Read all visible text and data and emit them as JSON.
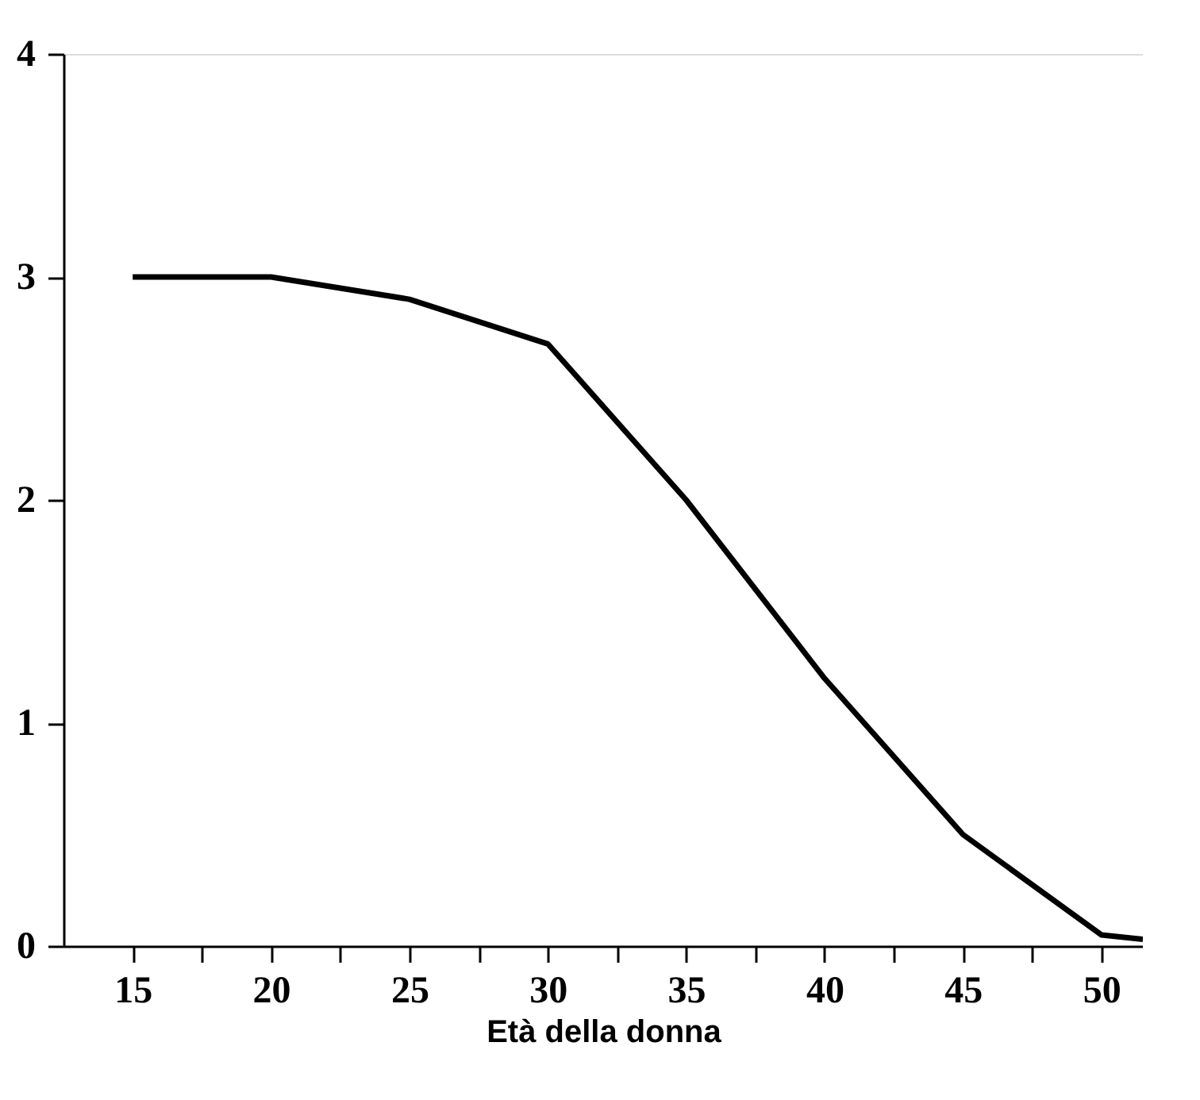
{
  "chart_data": {
    "type": "line",
    "xlabel": "Età della donna",
    "x": [
      15,
      20,
      25,
      30,
      35,
      40,
      45,
      50,
      51.5
    ],
    "series": [
      {
        "color": "#000000",
        "values": [
          3,
          3,
          2.9,
          2.7,
          2.0,
          1.2,
          0.5,
          0.05,
          0.03
        ]
      }
    ],
    "xlim": [
      12.5,
      51.5
    ],
    "xticks": [
      15,
      {
        "value": 17.5,
        "label": null
      },
      20,
      {
        "value": 22.5,
        "label": null
      },
      25,
      {
        "value": 27.5,
        "label": null
      },
      30,
      {
        "value": 32.5,
        "label": null
      },
      35,
      {
        "value": 37.5,
        "label": null
      },
      40,
      {
        "value": 42.5,
        "label": null
      },
      45,
      {
        "value": 47.5,
        "label": null
      },
      50
    ],
    "ylim": [
      0,
      4
    ],
    "yticks": [
      0,
      1,
      2,
      3,
      4
    ],
    "grid": false,
    "marker": "none",
    "line_style": "solid"
  }
}
